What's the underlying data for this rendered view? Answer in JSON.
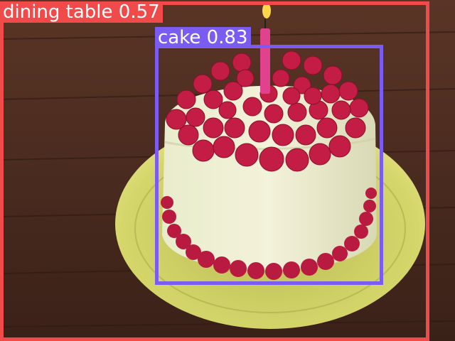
{
  "detections": [
    {
      "label": "dining table 0.57",
      "color": "#f04a4a"
    },
    {
      "label": "cake 0.83",
      "color": "#7a5cf0"
    }
  ],
  "scene": {
    "subject": "raspberry-cake-icon",
    "colors": {
      "table": "#4a2c1f",
      "plate": "#c9c95a",
      "frosting": "#ececcf",
      "raspberry": "#c41d45",
      "candle": "#e0428d",
      "flame": "#ffd54a"
    }
  }
}
